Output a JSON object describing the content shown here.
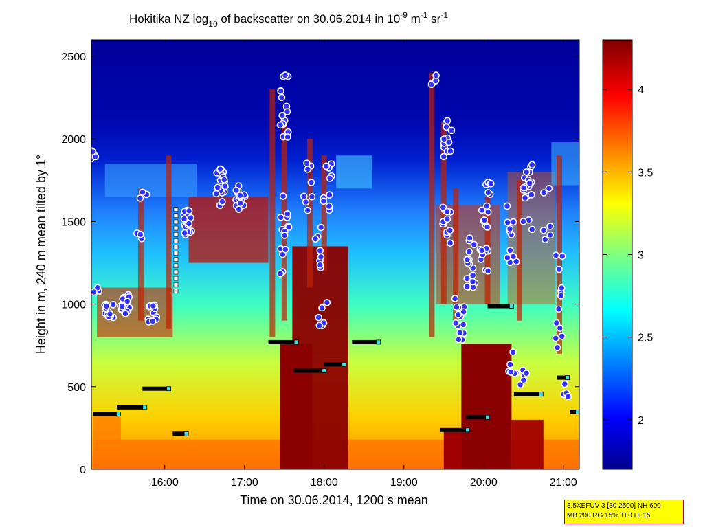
{
  "chart_data": {
    "type": "heatmap",
    "title": {
      "prefix": "Hokitika NZ log",
      "prefix_sub": "10",
      "middle": " of backscatter on 30.06.2014 in 10",
      "sup1": "-9",
      "unit_m": " m",
      "sup2": "-1",
      "unit_sr": " sr",
      "sup3": "-1"
    },
    "xlabel": "Time on 30.06.2014, 1200 s mean",
    "ylabel": "Height in m, 240 m mean tilted by 1°",
    "x_ticks": [
      "16:00",
      "17:00",
      "18:00",
      "19:00",
      "20:00",
      "21:00"
    ],
    "x_range_hours": [
      15.08,
      21.2
    ],
    "y_ticks": [
      0,
      500,
      1000,
      1500,
      2000,
      2500
    ],
    "y_range": [
      0,
      2600
    ],
    "colorbar": {
      "ticks": [
        "2",
        "2.5",
        "3",
        "3.5",
        "4"
      ],
      "range": [
        1.7,
        4.3
      ]
    },
    "cloud_base_segments": [
      {
        "t0": 15.1,
        "t1": 15.42,
        "h": 335
      },
      {
        "t0": 15.4,
        "t1": 15.75,
        "h": 375
      },
      {
        "t0": 15.72,
        "t1": 16.05,
        "h": 488
      },
      {
        "t0": 16.1,
        "t1": 16.27,
        "h": 215
      },
      {
        "t0": 17.3,
        "t1": 17.65,
        "h": 770
      },
      {
        "t0": 17.62,
        "t1": 18.0,
        "h": 597
      },
      {
        "t0": 18.0,
        "t1": 18.25,
        "h": 635
      },
      {
        "t0": 18.35,
        "t1": 18.68,
        "h": 770
      },
      {
        "t0": 19.45,
        "t1": 19.8,
        "h": 238
      },
      {
        "t0": 19.78,
        "t1": 20.05,
        "h": 315
      },
      {
        "t0": 20.05,
        "t1": 20.35,
        "h": 988
      },
      {
        "t0": 20.38,
        "t1": 20.72,
        "h": 455
      },
      {
        "t0": 20.92,
        "t1": 21.05,
        "h": 555
      },
      {
        "t0": 21.08,
        "t1": 21.18,
        "h": 348
      }
    ]
  },
  "info_box": {
    "line1": "3.5XEFUV 3 [30 2500] NH 600",
    "line2": "MB 200 RG 15% TI 0 HI 15"
  }
}
